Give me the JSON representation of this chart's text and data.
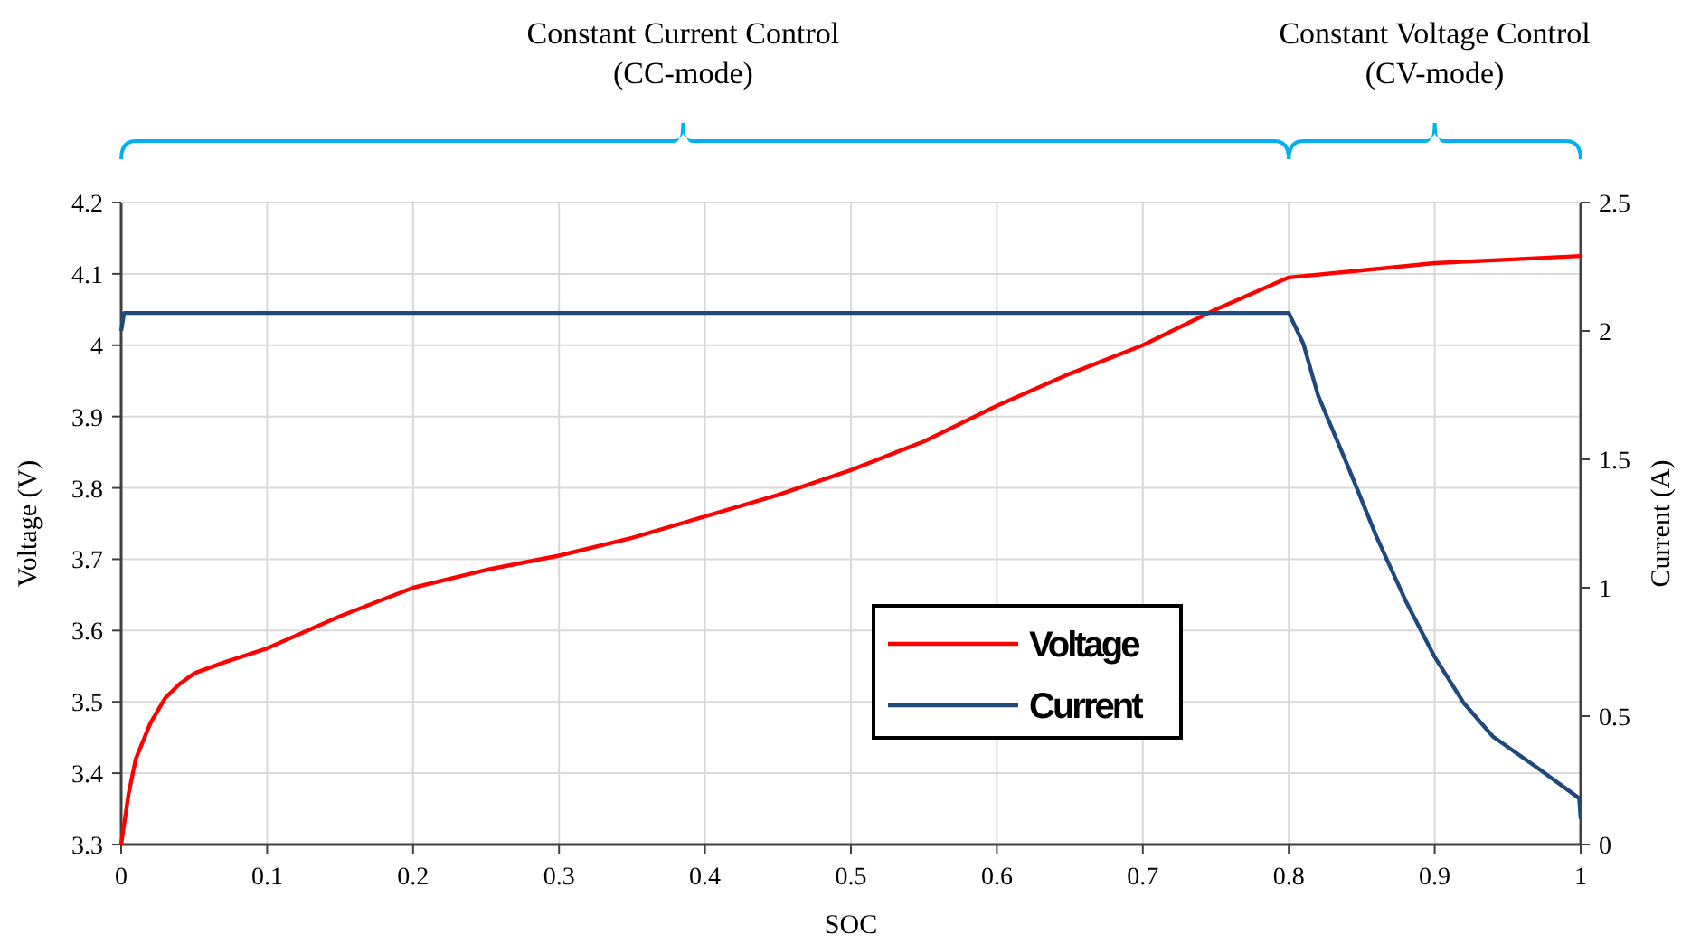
{
  "chart_data": {
    "type": "line",
    "xlabel": "SOC",
    "ylabel": "Voltage (V)",
    "y2label": "Current (A)",
    "annotations": [
      "Constant Current Control\n(CC-mode)",
      "Constant Voltage Control\n(CV-mode)"
    ],
    "xlim": [
      0,
      1
    ],
    "xticks": [
      0,
      0.1,
      0.2,
      0.3,
      0.4,
      0.5,
      0.6,
      0.7,
      0.8,
      0.9,
      1
    ],
    "ylim": [
      3.3,
      4.2
    ],
    "yticks": [
      3.3,
      3.4,
      3.5,
      3.6,
      3.7,
      3.8,
      3.9,
      4,
      4.1,
      4.2
    ],
    "y2lim": [
      0,
      2.5
    ],
    "y2ticks": [
      0,
      0.5,
      1,
      1.5,
      2,
      2.5
    ],
    "grid": true,
    "legend": "bottom",
    "line_style": "solid",
    "series": [
      {
        "name": "Voltage",
        "color": "#ff0000",
        "x": [
          0,
          0.005,
          0.01,
          0.02,
          0.03,
          0.04,
          0.05,
          0.07,
          0.1,
          0.15,
          0.2,
          0.25,
          0.3,
          0.35,
          0.4,
          0.45,
          0.5,
          0.55,
          0.6,
          0.65,
          0.7,
          0.75,
          0.8,
          0.85,
          0.9,
          0.95,
          1
        ],
        "values": [
          3.3,
          3.37,
          3.42,
          3.47,
          3.505,
          3.525,
          3.54,
          3.555,
          3.575,
          3.62,
          3.66,
          3.685,
          3.705,
          3.73,
          3.76,
          3.79,
          3.825,
          3.865,
          3.915,
          3.96,
          4.0,
          4.05,
          4.095,
          4.105,
          4.115,
          4.12,
          4.125
        ]
      },
      {
        "name": "Current",
        "color": "#1f497d",
        "axis": "y2",
        "x": [
          0,
          0.002,
          0.1,
          0.2,
          0.3,
          0.4,
          0.5,
          0.6,
          0.7,
          0.8,
          0.81,
          0.82,
          0.84,
          0.86,
          0.88,
          0.9,
          0.92,
          0.94,
          0.97,
          0.999,
          1
        ],
        "values": [
          2.0,
          2.07,
          2.07,
          2.07,
          2.07,
          2.07,
          2.07,
          2.07,
          2.07,
          2.07,
          1.95,
          1.75,
          1.48,
          1.2,
          0.95,
          0.73,
          0.55,
          0.42,
          0.3,
          0.18,
          0.1
        ]
      }
    ]
  }
}
